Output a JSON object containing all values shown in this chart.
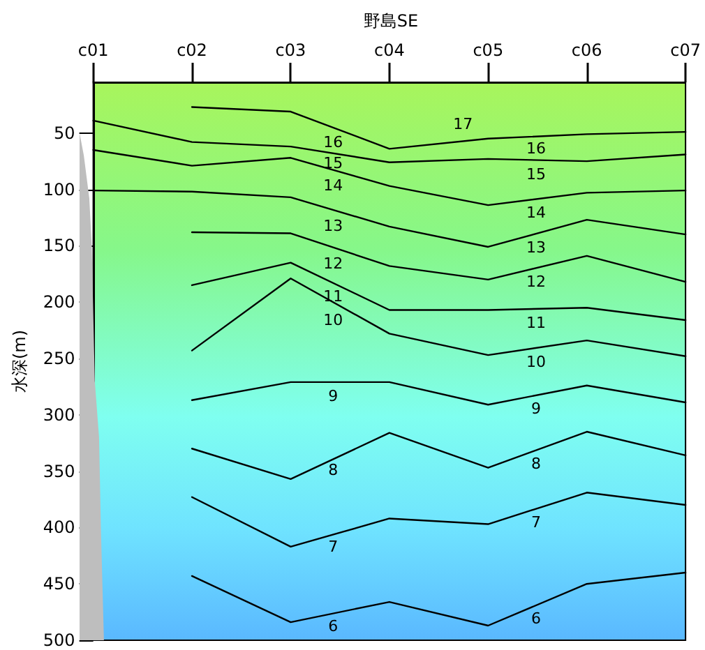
{
  "chart_data": {
    "type": "line",
    "title": "野島SE",
    "ylabel": "水深(m)",
    "categories": [
      "c01",
      "c02",
      "c03",
      "c04",
      "c05",
      "c06",
      "c07"
    ],
    "ylim": [
      500,
      5
    ],
    "yticks": [
      50,
      100,
      150,
      200,
      250,
      300,
      350,
      400,
      450,
      500
    ],
    "marker": "none",
    "line_style": "solid",
    "annotations": [
      "17"
    ],
    "series": [
      {
        "name": "16",
        "color": "#000000",
        "values": [
          null,
          27,
          31,
          64,
          55,
          51,
          49
        ]
      },
      {
        "name": "15",
        "color": "#000000",
        "values": [
          39,
          58,
          62,
          76,
          73,
          75,
          69
        ]
      },
      {
        "name": "14",
        "color": "#000000",
        "values": [
          65,
          79,
          72,
          97,
          114,
          103,
          101
        ]
      },
      {
        "name": "13",
        "color": "#000000",
        "values": [
          101,
          102,
          107,
          133,
          151,
          127,
          140
        ]
      },
      {
        "name": "12",
        "color": "#000000",
        "values": [
          null,
          138,
          139,
          168,
          180,
          159,
          182
        ]
      },
      {
        "name": "11",
        "color": "#000000",
        "values": [
          null,
          185,
          165,
          207,
          207,
          205,
          216
        ]
      },
      {
        "name": "10",
        "color": "#000000",
        "values": [
          null,
          243,
          179,
          228,
          247,
          234,
          248
        ]
      },
      {
        "name": "9",
        "color": "#000000",
        "values": [
          null,
          287,
          271,
          271,
          291,
          274,
          289
        ]
      },
      {
        "name": "8",
        "color": "#000000",
        "values": [
          null,
          330,
          357,
          316,
          347,
          315,
          336
        ]
      },
      {
        "name": "7",
        "color": "#000000",
        "values": [
          null,
          373,
          417,
          392,
          397,
          369,
          380
        ]
      },
      {
        "name": "6",
        "color": "#000000",
        "values": [
          null,
          443,
          484,
          466,
          487,
          450,
          440
        ]
      }
    ]
  }
}
